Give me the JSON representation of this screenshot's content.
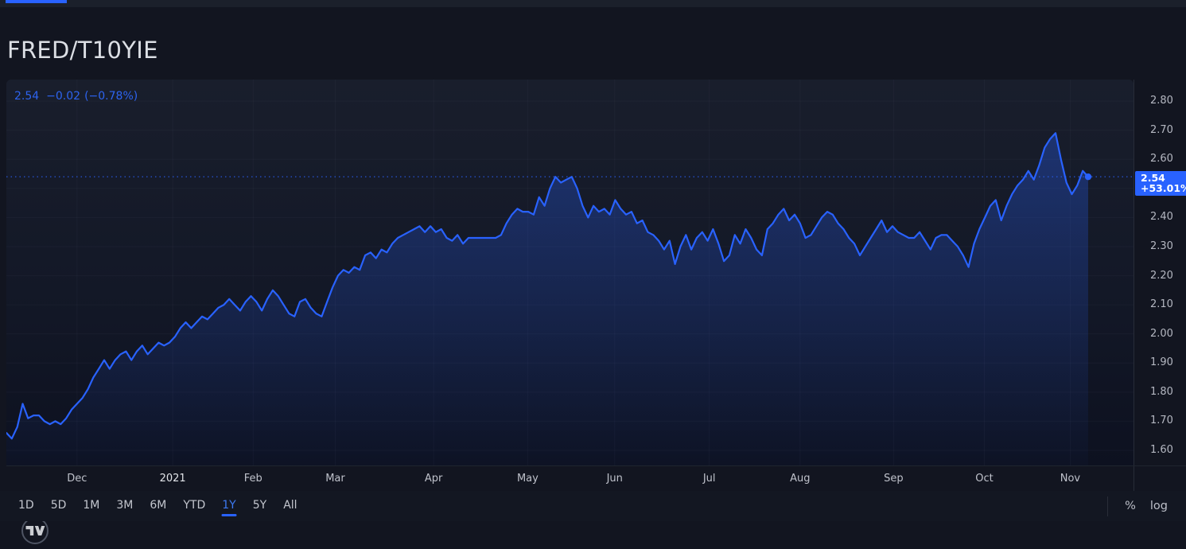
{
  "header": {
    "symbol": "FRED/T10YIE"
  },
  "legend": {
    "price": "2.54",
    "change": "−0.02",
    "change_pct": "(−0.78%)"
  },
  "price_axis": {
    "badge_price": "2.54",
    "badge_pct": "+53.01%"
  },
  "toolbar": {
    "ranges": [
      "1D",
      "5D",
      "1M",
      "3M",
      "6M",
      "YTD",
      "1Y",
      "5Y",
      "All"
    ],
    "active_range": "1Y",
    "percent": "%",
    "log": "log"
  },
  "watermark": {
    "name": "tradingview-logo"
  },
  "colors": {
    "accent": "#2962ff",
    "page_bg": "#131722",
    "axis_text": "#b4b7c1",
    "badge_bg": "#2962ff",
    "badge_text": "#ffffff",
    "grid": "rgba(140,152,176,0.055)"
  },
  "chart_data": {
    "type": "area",
    "title": "FRED/T10YIE",
    "series_name": "FRED/T10YIE 1Y",
    "last_value": 2.54,
    "prev_value": 2.56,
    "change": -0.02,
    "change_pct": -0.78,
    "range_change_pct": 53.01,
    "selected_range": "1Y",
    "ylim": [
      1.548,
      2.874
    ],
    "grid_levels": [
      1.6,
      1.7,
      1.8,
      1.9,
      2.0,
      2.1,
      2.2,
      2.3,
      2.4,
      2.5,
      2.6,
      2.7,
      2.8
    ],
    "ytick_labels": [
      "2.80",
      "2.70",
      "2.60",
      "2.40",
      "2.30",
      "2.20",
      "2.10",
      "2.00",
      "1.90",
      "1.80",
      "1.70",
      "1.60"
    ],
    "x_ticks": [
      {
        "label": "Dec",
        "i": 13.0
      },
      {
        "label": "2021",
        "i": 30.6,
        "year": true
      },
      {
        "label": "Feb",
        "i": 45.4
      },
      {
        "label": "Mar",
        "i": 60.5
      },
      {
        "label": "Apr",
        "i": 78.6
      },
      {
        "label": "May",
        "i": 95.9
      },
      {
        "label": "Jun",
        "i": 111.9
      },
      {
        "label": "Jul",
        "i": 129.3
      },
      {
        "label": "Aug",
        "i": 146.0
      },
      {
        "label": "Sep",
        "i": 163.2
      },
      {
        "label": "Oct",
        "i": 179.9
      },
      {
        "label": "Nov",
        "i": 195.7
      }
    ],
    "values": [
      1.66,
      1.64,
      1.68,
      1.76,
      1.71,
      1.72,
      1.72,
      1.7,
      1.69,
      1.7,
      1.69,
      1.71,
      1.74,
      1.76,
      1.78,
      1.81,
      1.85,
      1.88,
      1.91,
      1.88,
      1.91,
      1.93,
      1.94,
      1.91,
      1.94,
      1.96,
      1.93,
      1.95,
      1.97,
      1.96,
      1.97,
      1.99,
      2.02,
      2.04,
      2.02,
      2.04,
      2.06,
      2.05,
      2.07,
      2.09,
      2.1,
      2.12,
      2.1,
      2.08,
      2.11,
      2.13,
      2.11,
      2.08,
      2.12,
      2.15,
      2.13,
      2.1,
      2.07,
      2.06,
      2.11,
      2.12,
      2.09,
      2.07,
      2.06,
      2.11,
      2.16,
      2.2,
      2.22,
      2.21,
      2.23,
      2.22,
      2.27,
      2.28,
      2.26,
      2.29,
      2.28,
      2.31,
      2.33,
      2.34,
      2.35,
      2.36,
      2.37,
      2.35,
      2.37,
      2.35,
      2.36,
      2.33,
      2.32,
      2.34,
      2.31,
      2.33,
      2.33,
      2.33,
      2.33,
      2.33,
      2.33,
      2.34,
      2.38,
      2.41,
      2.43,
      2.42,
      2.42,
      2.41,
      2.47,
      2.44,
      2.5,
      2.54,
      2.52,
      2.53,
      2.54,
      2.5,
      2.44,
      2.4,
      2.44,
      2.42,
      2.43,
      2.41,
      2.46,
      2.43,
      2.41,
      2.42,
      2.38,
      2.39,
      2.35,
      2.34,
      2.32,
      2.29,
      2.32,
      2.24,
      2.3,
      2.34,
      2.29,
      2.33,
      2.35,
      2.32,
      2.36,
      2.31,
      2.25,
      2.27,
      2.34,
      2.31,
      2.36,
      2.33,
      2.29,
      2.27,
      2.36,
      2.38,
      2.41,
      2.43,
      2.39,
      2.41,
      2.38,
      2.33,
      2.34,
      2.37,
      2.4,
      2.42,
      2.41,
      2.38,
      2.36,
      2.33,
      2.31,
      2.27,
      2.3,
      2.33,
      2.36,
      2.39,
      2.35,
      2.37,
      2.35,
      2.34,
      2.33,
      2.33,
      2.35,
      2.32,
      2.29,
      2.33,
      2.34,
      2.34,
      2.32,
      2.3,
      2.27,
      2.23,
      2.31,
      2.36,
      2.4,
      2.44,
      2.46,
      2.39,
      2.44,
      2.48,
      2.51,
      2.53,
      2.56,
      2.53,
      2.58,
      2.64,
      2.67,
      2.69,
      2.6,
      2.52,
      2.48,
      2.51,
      2.56,
      2.54
    ]
  }
}
